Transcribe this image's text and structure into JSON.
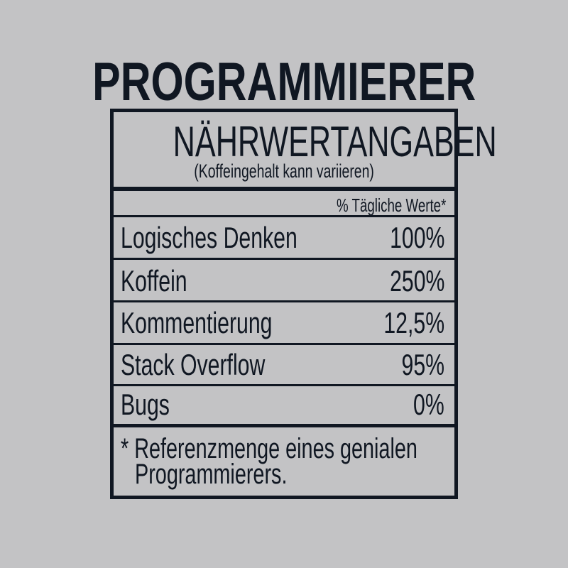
{
  "title": "PROGRAMMIERER",
  "label": {
    "heading": "NÄHRWERTANGABEN",
    "subheading": "(Koffeingehalt kann variieren)",
    "column_header": "% Tägliche Werte*",
    "rows": [
      {
        "name": "Logisches Denken",
        "value": "100%"
      },
      {
        "name": "Koffein",
        "value": "250%"
      },
      {
        "name": "Kommentierung",
        "value": "12,5%"
      },
      {
        "name": "Stack Overflow",
        "value": "95%"
      },
      {
        "name": "Bugs",
        "value": "0%"
      }
    ],
    "footnote_line1": "* Referenzmenge eines genialen",
    "footnote_line2": "Programmierers."
  },
  "colors": {
    "background": "#c3c3c5",
    "ink": "#101722"
  }
}
